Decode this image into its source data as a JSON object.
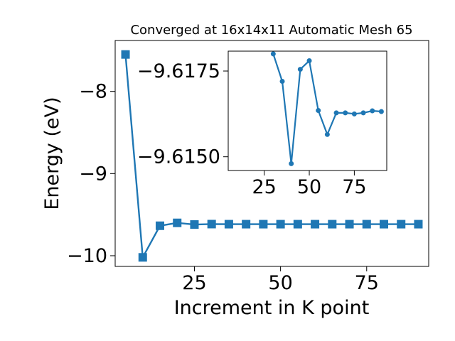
{
  "chart_data": [
    {
      "type": "line",
      "title": "Converged at 16x14x11 Automatic Mesh 65",
      "xlabel": "Increment in K point",
      "ylabel": "Energy (eV)",
      "xlim": [
        2.0,
        93.0
      ],
      "ylim": [
        -10.13,
        -7.38
      ],
      "xticks": [
        25,
        50,
        75
      ],
      "xtick_labels": [
        "25",
        "50",
        "75"
      ],
      "yticks": [
        -10,
        -9,
        -8
      ],
      "ytick_labels": [
        "−10",
        "−9",
        "−8"
      ],
      "grid": false,
      "marker": "square",
      "color": "#1f77b4",
      "series": [
        {
          "x": [
            5,
            10,
            15,
            20,
            25,
            30,
            35,
            40,
            45,
            50,
            55,
            60,
            65,
            70,
            75,
            80,
            85,
            90
          ],
          "y": [
            -7.55,
            -10.02,
            -9.635,
            -9.6,
            -9.62,
            -9.615,
            -9.616,
            -9.616,
            -9.616,
            -9.616,
            -9.616,
            -9.616,
            -9.616,
            -9.616,
            -9.616,
            -9.616,
            -9.616,
            -9.616
          ]
        }
      ]
    },
    {
      "type": "line",
      "title": "",
      "inset": true,
      "xlim": [
        5,
        93
      ],
      "ylim": [
        -9.6146,
        -9.61808
      ],
      "xticks": [
        25,
        50,
        75
      ],
      "xtick_labels": [
        "25",
        "50",
        "75"
      ],
      "yticks": [
        -9.6175,
        -9.615
      ],
      "ytick_labels": [
        "−9.6175",
        "−9.6150"
      ],
      "grid": false,
      "marker": "circle",
      "color": "#1f77b4",
      "series": [
        {
          "x": [
            30,
            35,
            40,
            45,
            50,
            55,
            60,
            65,
            70,
            75,
            80,
            85,
            90
          ],
          "y": [
            -9.618,
            -9.6172,
            -9.6148,
            -9.61755,
            -9.6178,
            -9.61635,
            -9.61565,
            -9.61628,
            -9.61628,
            -9.61625,
            -9.61628,
            -9.61634,
            -9.61632
          ]
        }
      ]
    }
  ]
}
